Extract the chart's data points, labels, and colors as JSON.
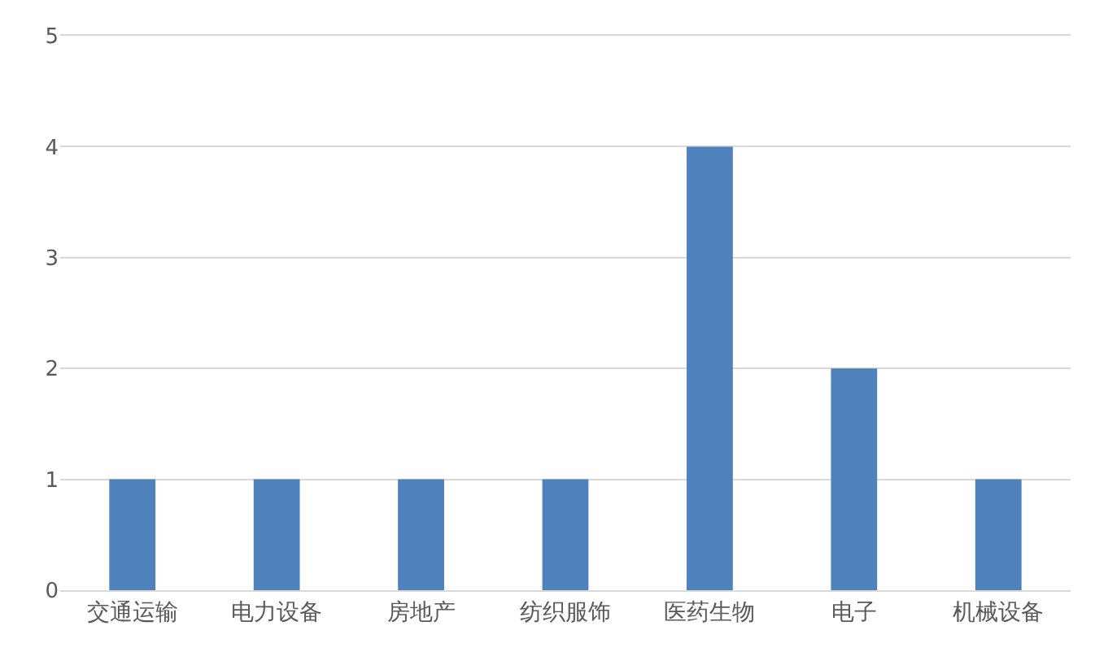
{
  "chart_data": {
    "type": "bar",
    "categories": [
      "交通运输",
      "电力设备",
      "房地产",
      "纺织服饰",
      "医药生物",
      "电子",
      "机械设备"
    ],
    "values": [
      1,
      1,
      1,
      1,
      4,
      2,
      1
    ],
    "color": "#4f81bd",
    "ylim": [
      0,
      5
    ],
    "yticks": [
      0,
      1,
      2,
      3,
      4,
      5
    ],
    "grid": "y"
  }
}
